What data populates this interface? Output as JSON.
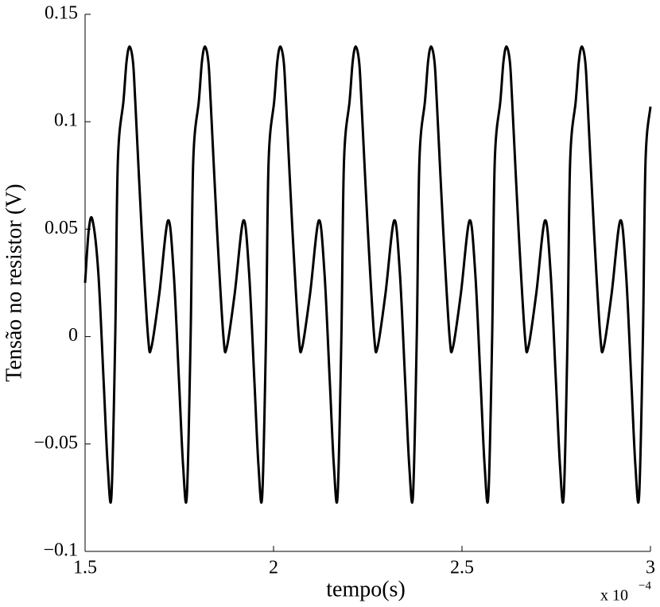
{
  "chart_data": {
    "type": "line",
    "x_label": "tempo(s)",
    "y_label": "Tensão no resistor (V)",
    "x_multiplier": "x 10",
    "x_exponent": "−4",
    "xlim": [
      1.5,
      3
    ],
    "xticks": [
      1.5,
      2,
      2.5,
      3
    ],
    "ylim": [
      -0.1,
      0.15
    ],
    "yticks": [
      {
        "value": -0.1,
        "label": "−0.1"
      },
      {
        "value": -0.05,
        "label": "−0.05"
      },
      0,
      0.05,
      0.1,
      0.15
    ],
    "grid": false,
    "x": [
      1.5,
      1.51,
      1.52,
      1.535,
      1.549,
      1.56,
      1.57,
      1.58,
      1.587,
      1.602,
      1.61,
      1.618,
      1.627,
      1.633,
      1.65,
      1.667,
      1.676,
      1.697,
      1.72,
      1.735,
      1.749,
      1.76,
      1.77,
      1.78,
      1.787,
      1.802,
      1.81,
      1.818,
      1.827,
      1.833,
      1.85,
      1.867,
      1.876,
      1.897,
      1.92,
      1.935,
      1.949,
      1.96,
      1.97,
      1.98,
      1.987,
      2.002,
      2.01,
      2.018,
      2.027,
      2.033,
      2.05,
      2.067,
      2.076,
      2.097,
      2.12,
      2.135,
      2.149,
      2.16,
      2.17,
      2.18,
      2.187,
      2.202,
      2.21,
      2.218,
      2.227,
      2.233,
      2.25,
      2.267,
      2.276,
      2.297,
      2.32,
      2.335,
      2.349,
      2.36,
      2.37,
      2.38,
      2.387,
      2.402,
      2.41,
      2.418,
      2.427,
      2.433,
      2.45,
      2.467,
      2.476,
      2.497,
      2.52,
      2.535,
      2.549,
      2.56,
      2.57,
      2.58,
      2.587,
      2.602,
      2.61,
      2.618,
      2.627,
      2.633,
      2.65,
      2.667,
      2.676,
      2.697,
      2.72,
      2.735,
      2.749,
      2.76,
      2.77,
      2.78,
      2.787,
      2.802,
      2.81,
      2.818,
      2.827,
      2.833,
      2.85,
      2.867,
      2.876,
      2.897,
      2.92,
      2.935,
      2.949,
      2.96,
      2.97,
      2.98,
      2.987,
      3.0
    ],
    "series": [
      {
        "color": "#000000",
        "values": [
          0.025,
          0.05,
          0.054,
          0.03,
          -0.02,
          -0.06,
          -0.074,
          0,
          0.082,
          0.11,
          0.128,
          0.135,
          0.128,
          0.11,
          0.05,
          0,
          -0.005,
          0.02,
          0.054,
          0.03,
          -0.02,
          -0.06,
          -0.074,
          0,
          0.082,
          0.11,
          0.128,
          0.135,
          0.128,
          0.11,
          0.05,
          0,
          -0.005,
          0.02,
          0.054,
          0.03,
          -0.02,
          -0.06,
          -0.074,
          0,
          0.082,
          0.11,
          0.128,
          0.135,
          0.128,
          0.11,
          0.05,
          0,
          -0.005,
          0.02,
          0.054,
          0.03,
          -0.02,
          -0.06,
          -0.074,
          0,
          0.082,
          0.11,
          0.128,
          0.135,
          0.128,
          0.11,
          0.05,
          0,
          -0.005,
          0.02,
          0.054,
          0.03,
          -0.02,
          -0.06,
          -0.074,
          0,
          0.082,
          0.11,
          0.128,
          0.135,
          0.128,
          0.11,
          0.05,
          0,
          -0.005,
          0.02,
          0.054,
          0.03,
          -0.02,
          -0.06,
          -0.074,
          0,
          0.082,
          0.11,
          0.128,
          0.135,
          0.128,
          0.11,
          0.05,
          0,
          -0.005,
          0.02,
          0.054,
          0.03,
          -0.02,
          -0.06,
          -0.074,
          0,
          0.082,
          0.11,
          0.128,
          0.135,
          0.128,
          0.11,
          0.05,
          0,
          -0.005,
          0.02,
          0.054,
          0.03,
          -0.02,
          -0.06,
          -0.074,
          0,
          0.082,
          0.107
        ]
      }
    ]
  }
}
